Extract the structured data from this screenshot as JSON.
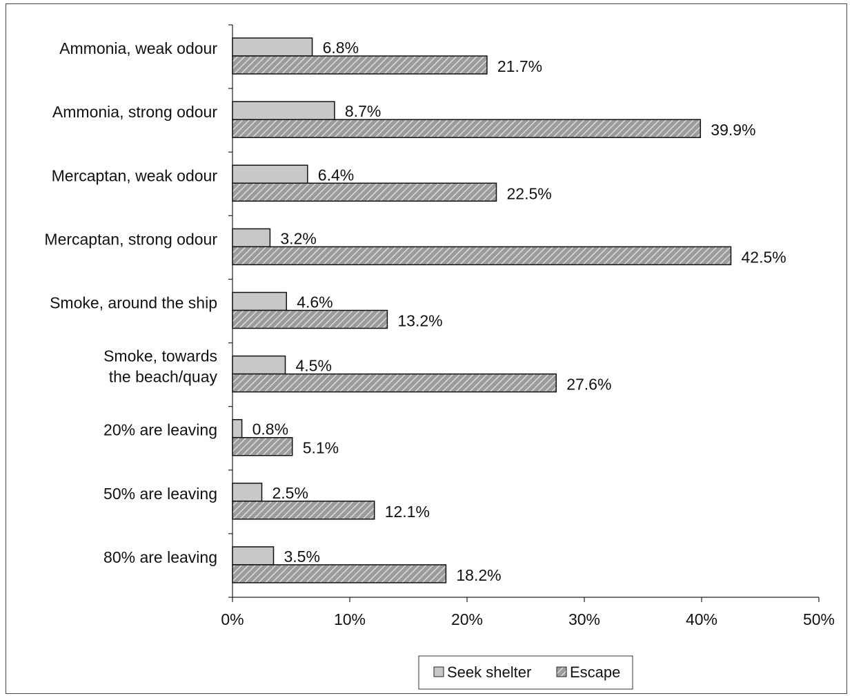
{
  "chart_data": {
    "type": "bar",
    "orientation": "horizontal",
    "categories": [
      "Ammonia, weak odour",
      "Ammonia, strong odour",
      "Mercaptan, weak odour",
      "Mercaptan, strong odour",
      "Smoke, around the ship",
      "Smoke, towards the beach/quay",
      "20% are leaving",
      "50% are leaving",
      "80% are leaving"
    ],
    "series": [
      {
        "name": "Seek shelter",
        "values": [
          6.8,
          8.7,
          6.4,
          3.2,
          4.6,
          4.5,
          0.8,
          2.5,
          3.5
        ],
        "labels": [
          "6.8%",
          "8.7%",
          "6.4%",
          "3.2%",
          "4.6%",
          "4.5%",
          "0.8%",
          "2.5%",
          "3.5%"
        ],
        "color": "#c8c8c8",
        "pattern": "solid"
      },
      {
        "name": "Escape",
        "values": [
          21.7,
          39.9,
          22.5,
          42.5,
          13.2,
          27.6,
          5.1,
          12.1,
          18.2
        ],
        "labels": [
          "21.7%",
          "39.9%",
          "22.5%",
          "42.5%",
          "13.2%",
          "27.6%",
          "5.1%",
          "12.1%",
          "18.2%"
        ],
        "color": "#a0a0a0",
        "pattern": "diagonal-hatch"
      }
    ],
    "xlim": [
      0,
      50
    ],
    "xticks": [
      "0%",
      "10%",
      "20%",
      "30%",
      "40%",
      "50%"
    ],
    "title": "",
    "xlabel": "",
    "ylabel": "",
    "grid": false,
    "legend_position": "bottom"
  }
}
